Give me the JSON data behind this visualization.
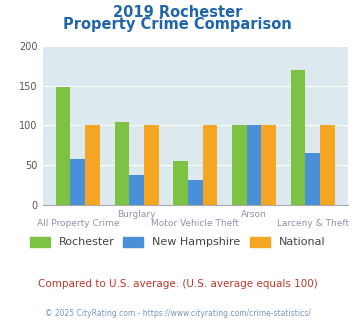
{
  "title_line1": "2019 Rochester",
  "title_line2": "Property Crime Comparison",
  "x_labels_top": [
    "",
    "Burglary",
    "",
    "Arson",
    ""
  ],
  "x_labels_bottom": [
    "All Property Crime",
    "",
    "Motor Vehicle Theft",
    "",
    "Larceny & Theft"
  ],
  "rochester": [
    148,
    104,
    55,
    100,
    170
  ],
  "new_hampshire": [
    58,
    38,
    31,
    100,
    65
  ],
  "national": [
    100,
    100,
    100,
    100,
    100
  ],
  "colors": {
    "rochester": "#7dc242",
    "new_hampshire": "#4a90d9",
    "national": "#f5a623"
  },
  "ylim": [
    0,
    200
  ],
  "yticks": [
    0,
    50,
    100,
    150,
    200
  ],
  "plot_bg": "#dce9ee",
  "title_color": "#2266aa",
  "xlabel_color": "#9b8ea8",
  "footer_text": "Compared to U.S. average. (U.S. average equals 100)",
  "copyright_text": "© 2025 CityRating.com - https://www.cityrating.com/crime-statistics/",
  "legend_labels": [
    "Rochester",
    "New Hampshire",
    "National"
  ],
  "title_fontsize": 10.5,
  "bar_width": 0.25
}
